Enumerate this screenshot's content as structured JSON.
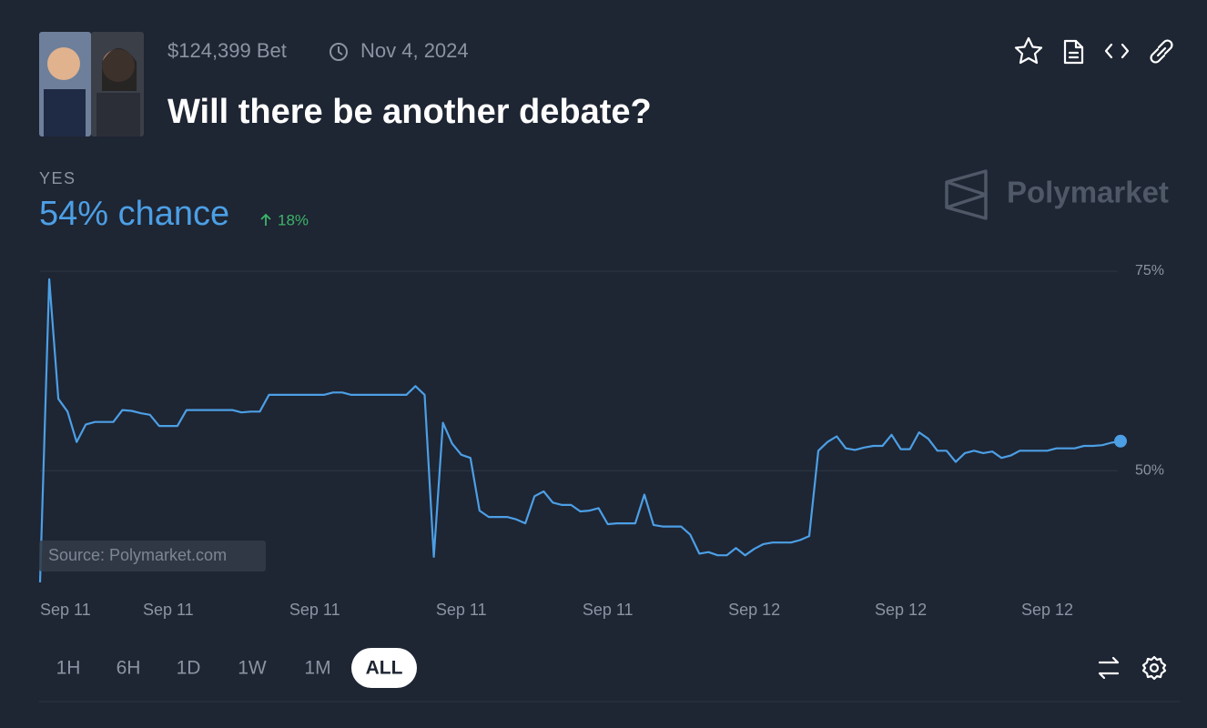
{
  "header": {
    "bet": "$124,399 Bet",
    "date": "Nov 4, 2024",
    "title": "Will there be another debate?"
  },
  "outcome": {
    "label": "YES",
    "chance": "54% chance",
    "change": "18%"
  },
  "brand": "Polymarket",
  "source": "Source: Polymarket.com",
  "ranges": [
    "1H",
    "6H",
    "1D",
    "1W",
    "1M",
    "ALL"
  ],
  "chart_data": {
    "type": "line",
    "categories": [
      "Sep 11",
      null,
      null,
      null,
      null,
      null,
      null,
      null,
      null,
      null,
      null,
      null,
      null,
      null,
      "Sep 11",
      null,
      null,
      null,
      null,
      null,
      null,
      null,
      null,
      null,
      null,
      null,
      null,
      null,
      null,
      null,
      "Sep 11",
      null,
      null,
      null,
      null,
      null,
      null,
      null,
      null,
      null,
      null,
      null,
      null,
      null,
      null,
      null,
      "Sep 11",
      null,
      null,
      null,
      null,
      null,
      null,
      null,
      null,
      null,
      null,
      null,
      null,
      null,
      null,
      null,
      "Sep 11",
      null,
      null,
      null,
      null,
      null,
      null,
      null,
      null,
      null,
      null,
      null,
      null,
      null,
      null,
      null,
      "Sep 12",
      null,
      null,
      null,
      null,
      null,
      null,
      null,
      null,
      null,
      null,
      null,
      null,
      null,
      null,
      null,
      "Sep 12",
      null,
      null,
      null,
      null,
      null,
      null,
      null,
      null,
      null,
      null,
      null,
      null,
      null,
      null,
      null,
      "Sep 12",
      null,
      null,
      null,
      null,
      null,
      null,
      null,
      null
    ],
    "series": [
      {
        "name": "YES",
        "color": "#4c9fe5",
        "values": [
          36,
          74,
          59,
          57.4,
          53.6,
          55.8,
          56.1,
          56.1,
          56.1,
          57.6,
          57.5,
          57.2,
          57.0,
          55.6,
          55.6,
          55.6,
          57.6,
          57.6,
          57.6,
          57.6,
          57.6,
          57.6,
          57.3,
          57.4,
          57.4,
          59.5,
          59.5,
          59.5,
          59.5,
          59.5,
          59.5,
          59.5,
          59.8,
          59.8,
          59.5,
          59.5,
          59.5,
          59.5,
          59.5,
          59.5,
          59.5,
          60.6,
          59.5,
          39.2,
          56.0,
          53.4,
          52.0,
          51.6,
          45.0,
          44.2,
          44.2,
          44.2,
          43.9,
          43.4,
          46.8,
          47.4,
          46.0,
          45.7,
          45.7,
          44.9,
          45.0,
          45.3,
          43.3,
          43.4,
          43.4,
          43.4,
          47.0,
          43.2,
          43.0,
          43.0,
          43.0,
          42.0,
          39.6,
          39.8,
          39.4,
          39.4,
          40.3,
          39.4,
          40.2,
          40.8,
          41.0,
          41.0,
          41.0,
          41.3,
          41.8,
          52.5,
          53.6,
          54.3,
          52.8,
          52.6,
          52.9,
          53.1,
          53.1,
          54.5,
          52.7,
          52.7,
          54.8,
          54.0,
          52.5,
          52.5,
          51.1,
          52.2,
          52.5,
          52.2,
          52.4,
          51.6,
          51.9,
          52.5,
          52.5,
          52.5,
          52.5,
          52.8,
          52.8,
          52.8,
          53.1,
          53.1,
          53.2,
          53.5,
          53.7
        ]
      }
    ],
    "ylim": [
      36,
      75
    ],
    "yticks": [
      {
        "value": 50,
        "label": "50%"
      },
      {
        "value": 75,
        "label": "75%"
      }
    ],
    "grid": true
  }
}
